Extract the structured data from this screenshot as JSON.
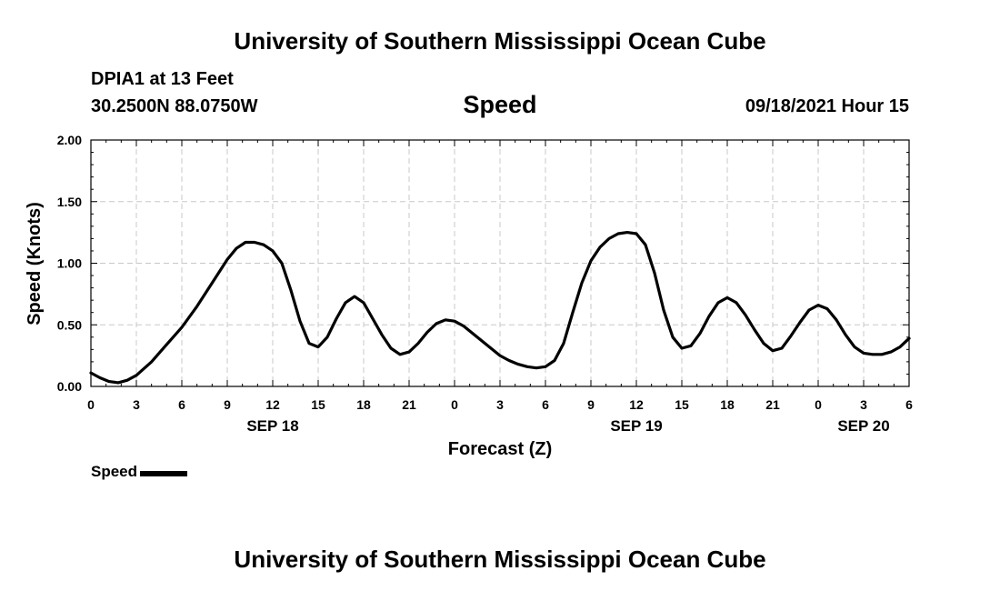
{
  "header": {
    "title": "University of Southern Mississippi Ocean Cube",
    "station": "DPIA1 at 13 Feet",
    "coords": "30.2500N  88.0750W",
    "variable": "Speed",
    "datetime": "09/18/2021 Hour 15"
  },
  "footer": {
    "title": "University of Southern Mississippi Ocean Cube"
  },
  "legend": {
    "label": "Speed",
    "color": "#000000"
  },
  "chart_data": {
    "type": "line",
    "title": "Speed",
    "xlabel": "Forecast (Z)",
    "ylabel": "Speed (Knots)",
    "xlim": [
      0,
      54
    ],
    "ylim": [
      0,
      2
    ],
    "grid": true,
    "x_ticks": [
      0,
      3,
      6,
      9,
      12,
      15,
      18,
      21,
      24,
      27,
      30,
      33,
      36,
      39,
      42,
      45,
      48,
      51,
      54
    ],
    "x_tick_labels": [
      "0",
      "3",
      "6",
      "9",
      "12",
      "15",
      "18",
      "21",
      "0",
      "3",
      "6",
      "9",
      "12",
      "15",
      "18",
      "21",
      "0",
      "3",
      "6"
    ],
    "date_labels": [
      {
        "x": 12,
        "label": "SEP 18"
      },
      {
        "x": 36,
        "label": "SEP 19"
      },
      {
        "x": 51,
        "label": "SEP 20"
      }
    ],
    "y_ticks": [
      0,
      0.5,
      1,
      1.5,
      2
    ],
    "y_tick_labels": [
      "0.00",
      "0.50",
      "1.00",
      "1.50",
      "2.00"
    ],
    "series": [
      {
        "name": "Speed",
        "color": "#000000",
        "x": [
          0,
          0.6,
          1.2,
          1.8,
          2.4,
          3,
          4,
          5,
          6,
          7,
          8,
          9,
          9.6,
          10.2,
          10.8,
          11.4,
          12,
          12.6,
          13.2,
          13.8,
          14.4,
          15,
          15.6,
          16.2,
          16.8,
          17.4,
          18,
          18.6,
          19.2,
          19.8,
          20.4,
          21,
          21.6,
          22.2,
          22.8,
          23.4,
          24,
          24.6,
          25.2,
          25.8,
          26.4,
          27,
          27.6,
          28.2,
          28.8,
          29.4,
          30,
          30.6,
          31.2,
          31.8,
          32.4,
          33,
          33.6,
          34.2,
          34.8,
          35.4,
          36,
          36.6,
          37.2,
          37.8,
          38.4,
          39,
          39.6,
          40.2,
          40.8,
          41.4,
          42,
          42.6,
          43.2,
          43.8,
          44.4,
          45,
          45.6,
          46.2,
          46.8,
          47.4,
          48,
          48.6,
          49.2,
          49.8,
          50.4,
          51,
          51.6,
          52.2,
          52.8,
          53.4,
          54
        ],
        "values": [
          0.11,
          0.07,
          0.04,
          0.03,
          0.05,
          0.09,
          0.2,
          0.34,
          0.48,
          0.65,
          0.84,
          1.03,
          1.12,
          1.17,
          1.17,
          1.15,
          1.1,
          1.0,
          0.78,
          0.53,
          0.35,
          0.32,
          0.4,
          0.55,
          0.68,
          0.73,
          0.68,
          0.55,
          0.42,
          0.31,
          0.26,
          0.28,
          0.35,
          0.44,
          0.51,
          0.54,
          0.53,
          0.49,
          0.43,
          0.37,
          0.31,
          0.25,
          0.21,
          0.18,
          0.16,
          0.15,
          0.16,
          0.21,
          0.35,
          0.6,
          0.84,
          1.02,
          1.13,
          1.2,
          1.24,
          1.25,
          1.24,
          1.15,
          0.92,
          0.62,
          0.4,
          0.31,
          0.33,
          0.43,
          0.57,
          0.68,
          0.72,
          0.68,
          0.58,
          0.46,
          0.35,
          0.29,
          0.31,
          0.41,
          0.52,
          0.62,
          0.66,
          0.63,
          0.54,
          0.42,
          0.32,
          0.27,
          0.26,
          0.26,
          0.28,
          0.32,
          0.39
        ]
      }
    ]
  }
}
